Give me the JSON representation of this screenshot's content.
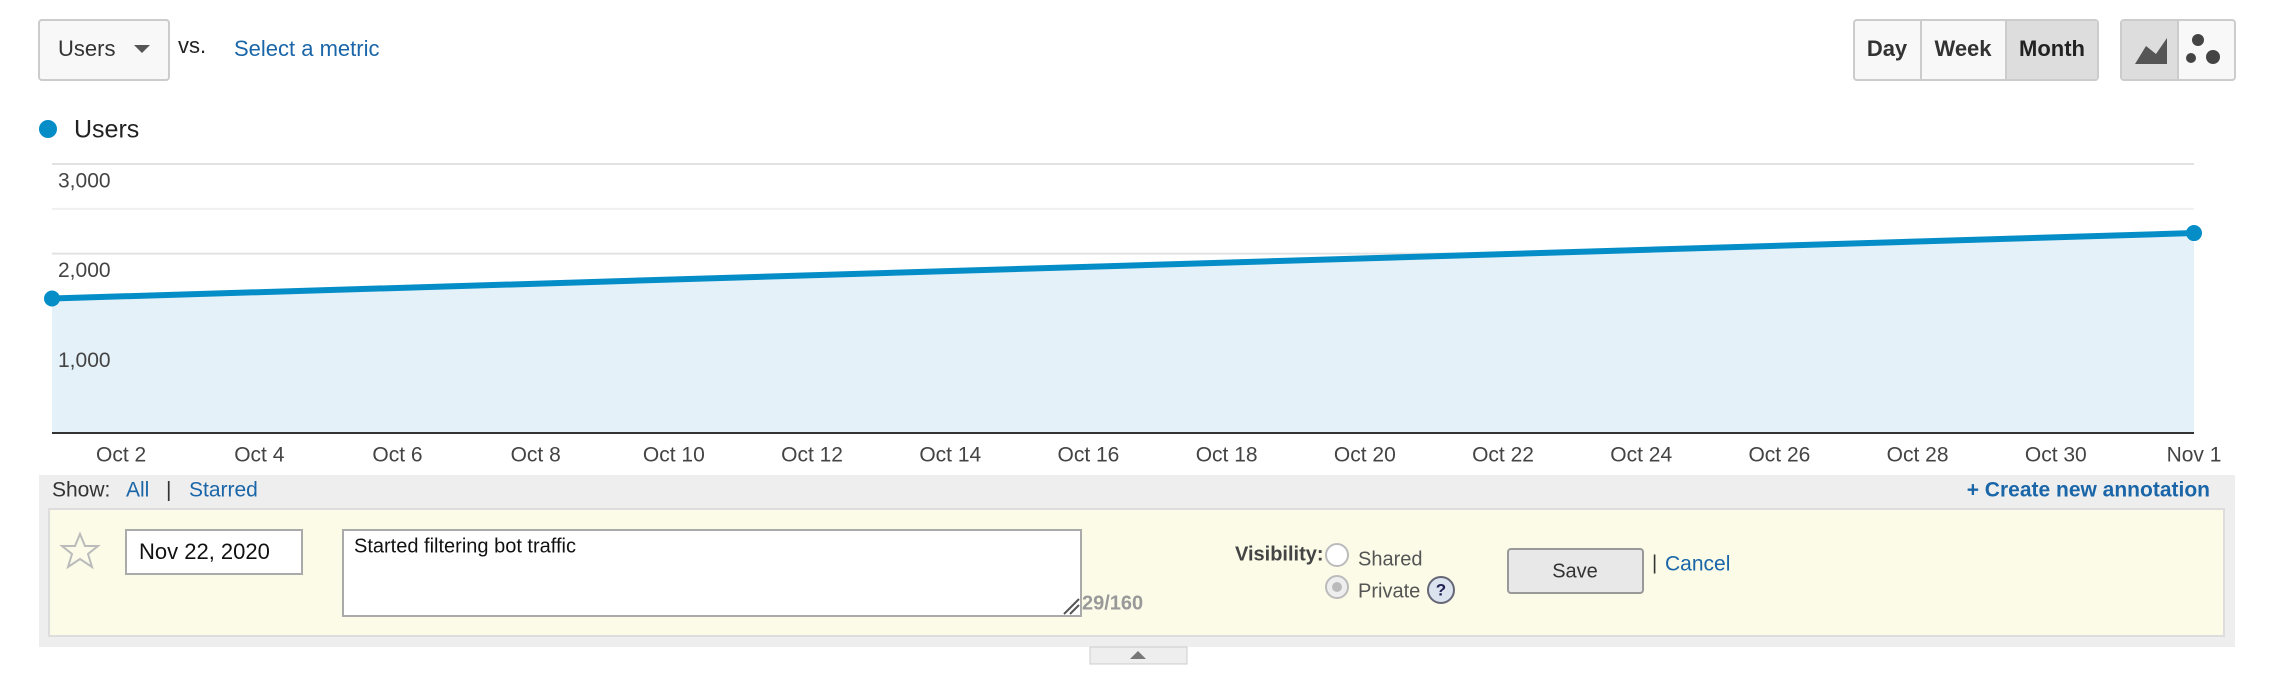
{
  "toolbar": {
    "metric": "Users",
    "vs": "vs.",
    "select_metric": "Select a metric",
    "periods": [
      "Day",
      "Week",
      "Month"
    ]
  },
  "chart_data": {
    "type": "line",
    "xlim": [
      1,
      32
    ],
    "ylim": [
      0,
      3000
    ],
    "yticks": [
      {
        "value": 1000,
        "label": "1,000"
      },
      {
        "value": 2000,
        "label": "2,000"
      },
      {
        "value": 3000,
        "label": "3,000"
      }
    ],
    "minor_yticks": [
      500,
      1500,
      2500
    ],
    "xticks": [
      {
        "value": 2,
        "label": "Oct 2"
      },
      {
        "value": 4,
        "label": "Oct 4"
      },
      {
        "value": 6,
        "label": "Oct 6"
      },
      {
        "value": 8,
        "label": "Oct 8"
      },
      {
        "value": 10,
        "label": "Oct 10"
      },
      {
        "value": 12,
        "label": "Oct 12"
      },
      {
        "value": 14,
        "label": "Oct 14"
      },
      {
        "value": 16,
        "label": "Oct 16"
      },
      {
        "value": 18,
        "label": "Oct 18"
      },
      {
        "value": 20,
        "label": "Oct 20"
      },
      {
        "value": 22,
        "label": "Oct 22"
      },
      {
        "value": 24,
        "label": "Oct 24"
      },
      {
        "value": 26,
        "label": "Oct 26"
      },
      {
        "value": 28,
        "label": "Oct 28"
      },
      {
        "value": 30,
        "label": "Oct 30"
      },
      {
        "value": 32,
        "label": "Nov 1"
      }
    ],
    "series": [
      {
        "name": "Users",
        "color": "#058dc7",
        "x": [
          1,
          32
        ],
        "values": [
          1500,
          2230
        ]
      }
    ],
    "grid": true,
    "area": true
  },
  "annotations": {
    "show": "Show:",
    "all": "All",
    "separator": "|",
    "starred": "Starred",
    "create": "+ Create new annotation",
    "date": "Nov 22, 2020",
    "text": "Started filtering bot traffic",
    "counter": "29/160",
    "visibility": "Visibility:",
    "shared": "Shared",
    "private": "Private",
    "help": "?",
    "save": "Save",
    "cancel_separator": "|",
    "cancel": "Cancel"
  }
}
